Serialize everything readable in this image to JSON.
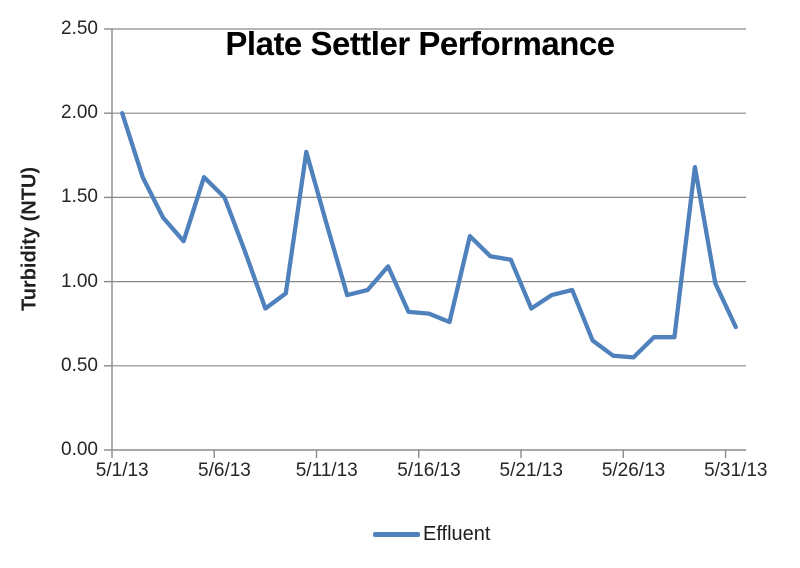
{
  "chart_data": {
    "type": "line",
    "title": "Plate Settler Performance",
    "xlabel": "",
    "ylabel": "Turbidity (NTU)",
    "x": [
      "5/1/13",
      "5/2/13",
      "5/3/13",
      "5/4/13",
      "5/5/13",
      "5/6/13",
      "5/7/13",
      "5/8/13",
      "5/9/13",
      "5/10/13",
      "5/11/13",
      "5/12/13",
      "5/13/13",
      "5/14/13",
      "5/15/13",
      "5/16/13",
      "5/17/13",
      "5/18/13",
      "5/19/13",
      "5/20/13",
      "5/21/13",
      "5/22/13",
      "5/23/13",
      "5/24/13",
      "5/25/13",
      "5/26/13",
      "5/27/13",
      "5/28/13",
      "5/29/13",
      "5/30/13",
      "5/31/13"
    ],
    "series": [
      {
        "name": "Effluent",
        "values": [
          2.0,
          1.62,
          1.38,
          1.24,
          1.62,
          1.5,
          1.18,
          0.84,
          0.93,
          1.77,
          1.34,
          0.92,
          0.95,
          1.09,
          0.82,
          0.81,
          0.76,
          1.27,
          1.15,
          1.13,
          0.84,
          0.92,
          0.95,
          0.65,
          0.56,
          0.55,
          0.67,
          0.67,
          1.68,
          0.99,
          0.73
        ]
      }
    ],
    "ylim": [
      0,
      2.5
    ],
    "ytick_labels": [
      "0.00",
      "0.50",
      "1.00",
      "1.50",
      "2.00",
      "2.50"
    ],
    "xtick_labels": [
      "5/1/13",
      "5/6/13",
      "5/11/13",
      "5/16/13",
      "5/21/13",
      "5/26/13",
      "5/31/13"
    ],
    "xtick_every": 5,
    "grid": "horizontal",
    "legend_position": "bottom",
    "colors": {
      "line": "#4F81BD",
      "gridline": "#8A8A8A",
      "axis": "#8A8A8A",
      "tick_text": "#262626",
      "title_text": "#000000"
    }
  }
}
